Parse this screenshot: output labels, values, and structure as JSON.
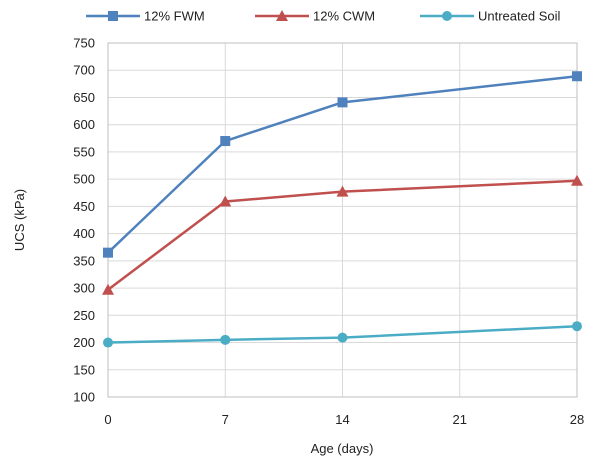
{
  "chart_data": {
    "type": "line",
    "title": "",
    "xlabel": "Age (days)",
    "ylabel": "UCS (kPa)",
    "x": [
      0,
      7,
      14,
      28
    ],
    "xticks": [
      0,
      7,
      14,
      21,
      28
    ],
    "xlim": [
      0,
      28
    ],
    "ylim": [
      100,
      750
    ],
    "yticks": [
      100,
      150,
      200,
      250,
      300,
      350,
      400,
      450,
      500,
      550,
      600,
      650,
      700,
      750
    ],
    "grid": true,
    "legend_position": "top",
    "series": [
      {
        "name": "12% FWM",
        "values": [
          365,
          570,
          641,
          689
        ],
        "color": "#4f81bd",
        "marker": "square"
      },
      {
        "name": "12% CWM",
        "values": [
          297,
          459,
          477,
          497
        ],
        "color": "#c0504d",
        "marker": "triangle"
      },
      {
        "name": "Untreated Soil",
        "values": [
          200,
          205,
          209,
          230
        ],
        "color": "#4bacc6",
        "marker": "circle"
      }
    ]
  }
}
